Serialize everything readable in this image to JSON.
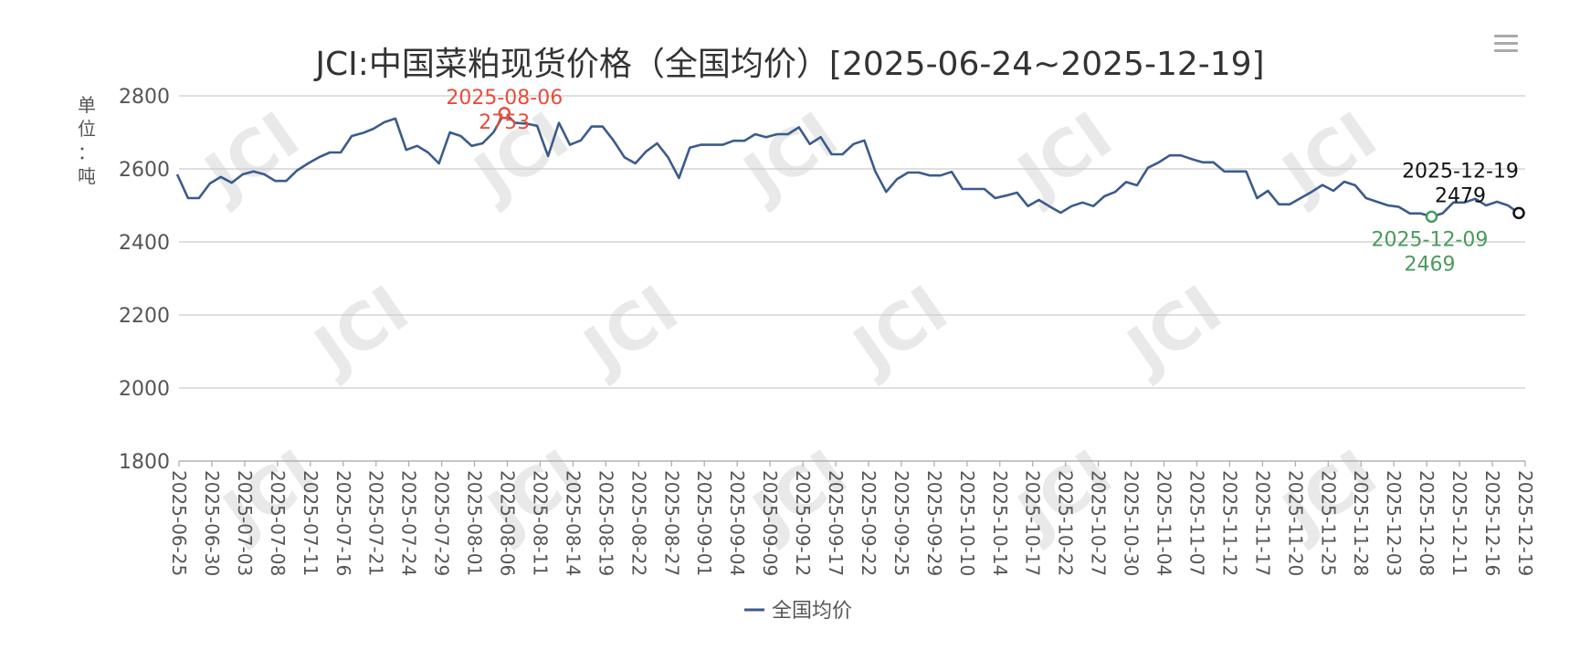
{
  "chart_data": {
    "type": "line",
    "title": "JCI:中国菜粕现货价格（全国均价）[2025-06-24~2025-12-19]",
    "ylabel": "单位：吨",
    "ylim": [
      1800,
      2800
    ],
    "yticks": [
      1800,
      2000,
      2200,
      2400,
      2600,
      2800
    ],
    "grid": true,
    "legend_position": "bottom-center",
    "xtick_labels": [
      "2025-06-25",
      "2025-06-30",
      "2025-07-03",
      "2025-07-08",
      "2025-07-11",
      "2025-07-16",
      "2025-07-21",
      "2025-07-24",
      "2025-07-29",
      "2025-08-01",
      "2025-08-06",
      "2025-08-11",
      "2025-08-14",
      "2025-08-19",
      "2025-08-22",
      "2025-08-27",
      "2025-09-01",
      "2025-09-04",
      "2025-09-09",
      "2025-09-12",
      "2025-09-17",
      "2025-09-22",
      "2025-09-25",
      "2025-09-29",
      "2025-10-10",
      "2025-10-14",
      "2025-10-17",
      "2025-10-22",
      "2025-10-27",
      "2025-10-30",
      "2025-11-04",
      "2025-11-07",
      "2025-11-12",
      "2025-11-17",
      "2025-11-20",
      "2025-11-25",
      "2025-11-28",
      "2025-12-03",
      "2025-12-08",
      "2025-12-11",
      "2025-12-16",
      "2025-12-19"
    ],
    "series": [
      {
        "name": "全国均价",
        "color": "#3b5b8c",
        "values": [
          2585,
          2520,
          2520,
          2560,
          2578,
          2562,
          2585,
          2593,
          2585,
          2567,
          2567,
          2596,
          2615,
          2632,
          2645,
          2645,
          2690,
          2698,
          2710,
          2728,
          2738,
          2652,
          2663,
          2645,
          2615,
          2700,
          2690,
          2663,
          2670,
          2700,
          2753,
          2726,
          2724,
          2718,
          2635,
          2726,
          2666,
          2678,
          2716,
          2716,
          2678,
          2632,
          2615,
          2648,
          2670,
          2632,
          2575,
          2658,
          2666,
          2666,
          2666,
          2677,
          2677,
          2695,
          2687,
          2695,
          2695,
          2714,
          2668,
          2687,
          2640,
          2640,
          2668,
          2678,
          2593,
          2537,
          2572,
          2590,
          2590,
          2582,
          2582,
          2592,
          2545,
          2545,
          2545,
          2520,
          2527,
          2535,
          2498,
          2515,
          2497,
          2480,
          2498,
          2508,
          2498,
          2525,
          2537,
          2564,
          2555,
          2603,
          2618,
          2637,
          2637,
          2627,
          2618,
          2618,
          2593,
          2593,
          2593,
          2520,
          2540,
          2503,
          2503,
          2520,
          2537,
          2556,
          2540,
          2565,
          2555,
          2520,
          2510,
          2500,
          2496,
          2478,
          2478,
          2469,
          2478,
          2508,
          2508,
          2518,
          2500,
          2510,
          2500,
          2479
        ]
      }
    ],
    "annotations": [
      {
        "label_date": "2025-08-06",
        "label_value": "2753",
        "index": 30,
        "color": "#e84c3d",
        "kind": "max"
      },
      {
        "label_date": "2025-12-09",
        "label_value": "2469",
        "index": 115,
        "color": "#4a9a5c",
        "kind": "min"
      },
      {
        "label_date": "2025-12-19",
        "label_value": "2479",
        "index": 123,
        "color": "#111111",
        "kind": "last"
      }
    ],
    "watermark": "JCI"
  }
}
